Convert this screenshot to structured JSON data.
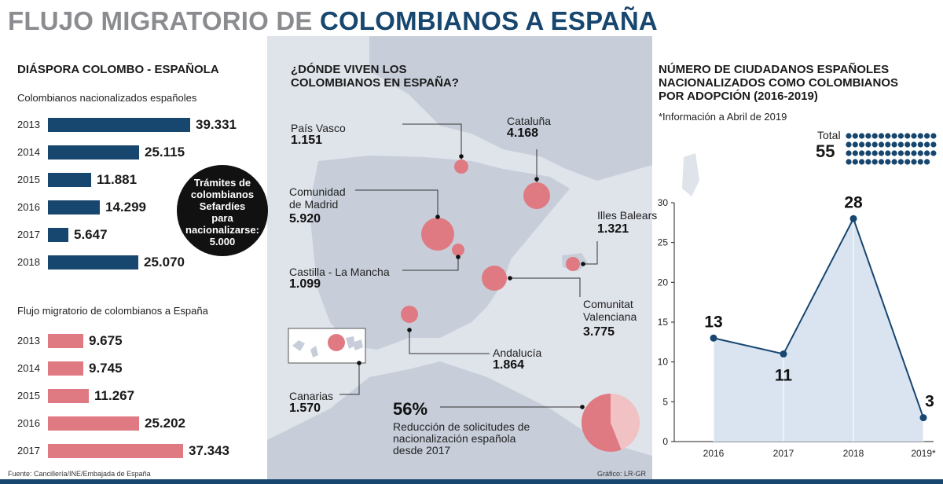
{
  "title": {
    "part1": "FLUJO MIGRATORIO DE ",
    "part2": "COLOMBIANOS A ESPAÑA"
  },
  "colors": {
    "navy": "#17466f",
    "pink": "#e07a82",
    "pie_dark": "#e07a82",
    "pie_light": "#f0c2c4",
    "area": "#d9e4f0"
  },
  "diaspora": {
    "title": "DIÁSPORA COLOMBO - ESPAÑOLA",
    "nationalized": {
      "subtitle": "Colombianos nacionalizados españoles"
    },
    "migration": {
      "subtitle": "Flujo migratorio de colombianos a España"
    },
    "note_line1": "Trámites de",
    "note_line2": "colombianos",
    "note_line3": "Sefardíes",
    "note_line4": "para",
    "note_line5": "nacionalizarse:",
    "note_value": "5.000"
  },
  "map": {
    "title_line1": "¿DÓNDE VIVEN LOS",
    "title_line2": "COLOMBIANOS EN ESPAÑA?"
  },
  "reduction": {
    "percent": "56%",
    "text_line1": "Reducción de solicitudes de",
    "text_line2": "nacionalización española",
    "text_line3": "desde 2017",
    "value": 56
  },
  "footer": {
    "source": "Fuente: Cancillería/INE/Embajada de España",
    "credit": "Gráfico: LR-GR"
  },
  "chart_data": [
    {
      "type": "bar",
      "title": "Colombianos nacionalizados españoles",
      "categories": [
        "2013",
        "2014",
        "2015",
        "2016",
        "2017",
        "2018"
      ],
      "values": [
        39331,
        25115,
        11881,
        14299,
        5647,
        25070
      ],
      "labels": [
        "39.331",
        "25.115",
        "11.881",
        "14.299",
        "5.647",
        "25.070"
      ]
    },
    {
      "type": "bar",
      "title": "Flujo migratorio de colombianos a España",
      "categories": [
        "2013",
        "2014",
        "2015",
        "2016",
        "2017"
      ],
      "values": [
        9675,
        9745,
        11267,
        25202,
        37343
      ],
      "labels": [
        "9.675",
        "9.745",
        "11.267",
        "25.202",
        "37.343"
      ]
    },
    {
      "type": "line",
      "title_line1": "NÚMERO DE CIUDADANOS ESPAÑOLES",
      "title_line2": "NACIONALIZADOS COMO COLOMBIANOS",
      "title_line3": "POR ADOPCIÓN (2016-2019)",
      "note": "*Información a Abril de 2019",
      "total_label": "Total",
      "total_value": "55",
      "total_dots": 55,
      "categories": [
        "2016",
        "2017",
        "2018",
        "2019*"
      ],
      "values": [
        13,
        11,
        28,
        3
      ],
      "labels": [
        "13",
        "11",
        "28",
        "3"
      ],
      "ylim": [
        0,
        30
      ],
      "yticks": [
        "0",
        "5",
        "10",
        "15",
        "20",
        "25",
        "30"
      ]
    }
  ],
  "regions": [
    {
      "name": "País Vasco",
      "value": "1.151",
      "num": 1151
    },
    {
      "name": "Cataluña",
      "value": "4.168",
      "num": 4168
    },
    {
      "name": "Comunidad de Madrid",
      "value": "5.920",
      "num": 5920
    },
    {
      "name": "Illes Balears",
      "value": "1.321",
      "num": 1321
    },
    {
      "name": "Castilla - La Mancha",
      "value": "1.099",
      "num": 1099
    },
    {
      "name": "Comunitat Valenciana",
      "value": "3.775",
      "num": 3775
    },
    {
      "name": "Andalucía",
      "value": "1.864",
      "num": 1864
    },
    {
      "name": "Canarias",
      "value": "1.570",
      "num": 1570
    }
  ]
}
